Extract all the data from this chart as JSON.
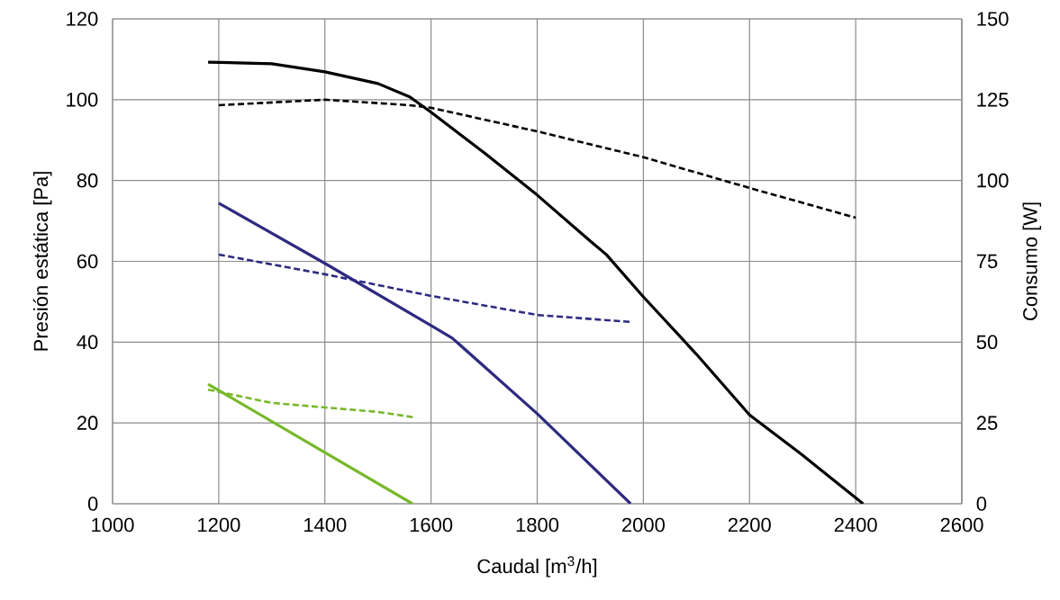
{
  "chart_data": {
    "type": "line",
    "xlabel": "Caudal [m$^{3}$/h]",
    "ylabel": "Presión estática [Pa]",
    "y2label": "Consumo [W]",
    "xlim": [
      1000,
      2600
    ],
    "xticks": [
      1000,
      1200,
      1400,
      1600,
      1800,
      2000,
      2200,
      2400,
      2600
    ],
    "ylim": [
      0,
      120
    ],
    "yticks": [
      0,
      20,
      40,
      60,
      80,
      100,
      120
    ],
    "y2lim": [
      0,
      150
    ],
    "y2ticks": [
      0,
      25,
      50,
      75,
      100,
      125,
      150
    ],
    "grid": true,
    "series": [
      {
        "color": "#000000",
        "axis": "y",
        "line_style": "solid",
        "x": [
          1180,
          1300,
          1400,
          1500,
          1560,
          1600,
          1700,
          1800,
          1900,
          1930,
          2000,
          2100,
          2200,
          2300,
          2414
        ],
        "values": [
          109.3,
          108.9,
          106.9,
          104,
          100.7,
          96.9,
          86.9,
          76.4,
          65,
          61.7,
          51.2,
          37,
          22,
          12,
          0
        ]
      },
      {
        "color": "#000000",
        "axis": "y2",
        "line_style": "dashed",
        "x": [
          1200,
          1400,
          1560,
          1600,
          1800,
          2000,
          2200,
          2400
        ],
        "values": [
          123.3,
          125,
          123.3,
          122.5,
          115.2,
          107.2,
          97.7,
          88.5
        ]
      },
      {
        "color": "#2e2a80",
        "axis": "y",
        "line_style": "solid",
        "x": [
          1200,
          1400,
          1600,
          1640,
          1800,
          1976
        ],
        "values": [
          74.4,
          59.5,
          44.1,
          41,
          22.3,
          0
        ]
      },
      {
        "color": "#2e2a80",
        "axis": "y2",
        "line_style": "dashed",
        "x": [
          1200,
          1400,
          1600,
          1800,
          1980
        ],
        "values": [
          77.1,
          71,
          64.3,
          58.4,
          56.2
        ]
      },
      {
        "color": "#77b82a",
        "axis": "y",
        "line_style": "solid",
        "x": [
          1180,
          1565
        ],
        "values": [
          29.6,
          0
        ]
      },
      {
        "color": "#77b82a",
        "axis": "y2",
        "line_style": "dashed",
        "x": [
          1180,
          1300,
          1400,
          1500,
          1570
        ],
        "values": [
          35.3,
          31.2,
          29.8,
          28.4,
          26.7
        ]
      }
    ]
  }
}
